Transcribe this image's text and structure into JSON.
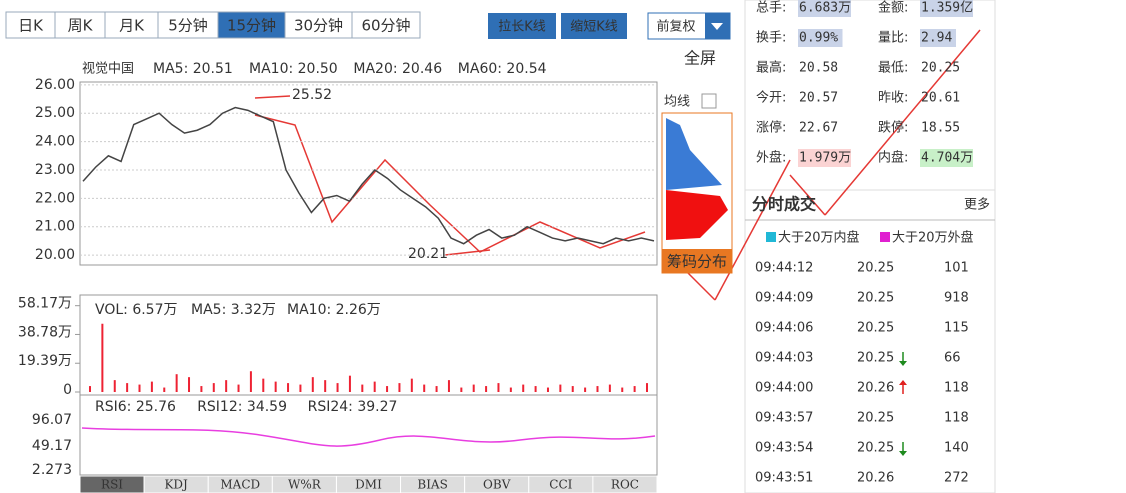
{
  "tabs": [
    "日K",
    "周K",
    "月K",
    "5分钟",
    "15分钟",
    "30分钟",
    "60分钟"
  ],
  "active_tab": 4,
  "buttons": [
    "拉长K线",
    "缩短K线"
  ],
  "adjust": "前复权",
  "fullscreen": "全屏",
  "chart": {
    "title": "视觉中国",
    "ma": [
      {
        "label": "MA5: 20.51",
        "color": "#2f7be0"
      },
      {
        "label": "MA10: 20.50",
        "color": "#e8a317"
      },
      {
        "label": "MA20: 20.46",
        "color": "#e83ee0"
      },
      {
        "label": "MA60: 20.54",
        "color": "#2c9a2c"
      }
    ],
    "ylim": [
      19.65,
      26.1
    ],
    "yticks": [
      {
        "value": 26,
        "label": "26.00"
      },
      {
        "value": 25,
        "label": "25.00"
      },
      {
        "value": 24,
        "label": "24.00"
      },
      {
        "value": 23,
        "label": "23.00"
      },
      {
        "value": 22,
        "label": "22.00"
      },
      {
        "value": 21,
        "label": "21.00"
      },
      {
        "value": 20,
        "label": "20.00"
      }
    ],
    "close": [
      22.6,
      23.1,
      23.5,
      23.3,
      24.6,
      24.8,
      25.0,
      24.6,
      24.3,
      24.4,
      24.6,
      25.0,
      25.2,
      25.1,
      24.9,
      24.7,
      23.0,
      22.2,
      21.5,
      22.0,
      22.1,
      21.9,
      22.5,
      23.0,
      22.7,
      22.3,
      22.0,
      21.7,
      21.3,
      20.6,
      20.4,
      20.7,
      20.9,
      20.6,
      20.7,
      21.0,
      20.8,
      20.6,
      20.5,
      20.6,
      20.5,
      20.4,
      20.6,
      20.5,
      20.6,
      20.5
    ],
    "line_color": "#444",
    "annotations": [
      "25.52",
      "20.21"
    ]
  },
  "chip": {
    "ma_label": "均线",
    "button": "筹码分布"
  },
  "volume": {
    "legend": [
      {
        "label": "VOL: 6.57万",
        "color": "#e83ee0"
      },
      {
        "label": "MA5: 3.32万",
        "color": "#333"
      },
      {
        "label": "MA10: 2.26万",
        "color": "#e83ee0"
      }
    ],
    "ylim": [
      0,
      62
    ],
    "yticks": [
      {
        "value": 58.17,
        "label": "58.17万"
      },
      {
        "value": 38.78,
        "label": "38.78万"
      },
      {
        "value": 19.39,
        "label": "19.39万"
      },
      0
    ],
    "values": [
      4,
      46,
      8,
      6,
      5,
      7,
      3,
      12,
      10,
      4,
      6,
      8,
      5,
      14,
      9,
      7,
      6,
      5,
      10,
      8,
      6,
      11,
      5,
      7,
      4,
      6,
      9,
      5,
      4,
      8,
      3,
      5,
      4,
      6,
      3,
      5,
      4,
      3,
      5,
      4,
      3,
      4,
      5,
      3,
      4,
      6
    ],
    "color": "#e23"
  },
  "rsi": {
    "legend": [
      {
        "label": "RSI6: 25.76",
        "color": "#999"
      },
      {
        "label": "RSI12: 34.59",
        "color": "#e8a317"
      },
      {
        "label": "RSI24: 39.27",
        "color": "#e83ee0"
      }
    ],
    "yticks": [
      "96.07",
      "49.17",
      "2.273"
    ]
  },
  "indicator_tabs": [
    "RSI",
    "KDJ",
    "MACD",
    "W%R",
    "DMI",
    "BIAS",
    "OBV",
    "CCI",
    "ROC"
  ],
  "active_indicator": 0,
  "stats": [
    [
      {
        "label": "总手:",
        "value": "6.683万"
      },
      {
        "label": "金额:",
        "value": "1.359亿"
      }
    ],
    [
      {
        "label": "换手:",
        "value": "0.99%"
      },
      {
        "label": "量比:",
        "value": "2.94"
      }
    ],
    [
      {
        "label": "最高:",
        "value": "20.58"
      },
      {
        "label": "最低:",
        "value": "20.25"
      }
    ],
    [
      {
        "label": "今开:",
        "value": "20.57"
      },
      {
        "label": "昨收:",
        "value": "20.61"
      }
    ],
    [
      {
        "label": "涨停:",
        "value": "22.67"
      },
      {
        "label": "跌停:",
        "value": "18.55"
      }
    ],
    [
      {
        "label": "外盘:",
        "value": "1.979万"
      },
      {
        "label": "内盘:",
        "value": "4.704万"
      }
    ]
  ],
  "trades": {
    "title": "分时成交",
    "more": "更多",
    "legend": [
      {
        "label": "大于20万内盘",
        "color": "#21b8d6"
      },
      {
        "label": "大于20万外盘",
        "color": "#e020d0"
      }
    ],
    "rows": [
      {
        "time": "09:44:12",
        "price": "20.25",
        "volume": "101",
        "dir": null,
        "color": "#1a9fa8"
      },
      {
        "time": "09:44:09",
        "price": "20.25",
        "volume": "918",
        "dir": null,
        "color": "#1a9fa8"
      },
      {
        "time": "09:44:06",
        "price": "20.25",
        "volume": "115",
        "dir": null,
        "color": "#1a9fa8"
      },
      {
        "time": "09:44:03",
        "price": "20.25",
        "volume": "66",
        "dir": "down",
        "color": "#1a9fa8"
      },
      {
        "time": "09:44:00",
        "price": "20.26",
        "volume": "118",
        "dir": "up",
        "color": "#d020c0"
      },
      {
        "time": "09:43:57",
        "price": "20.25",
        "volume": "118",
        "dir": null,
        "color": "#1a9fa8"
      },
      {
        "time": "09:43:54",
        "price": "20.25",
        "volume": "140",
        "dir": "down",
        "color": "#1a9fa8"
      },
      {
        "time": "09:43:51",
        "price": "20.26",
        "volume": "272",
        "dir": null,
        "color": "#1a9fa8"
      }
    ]
  }
}
